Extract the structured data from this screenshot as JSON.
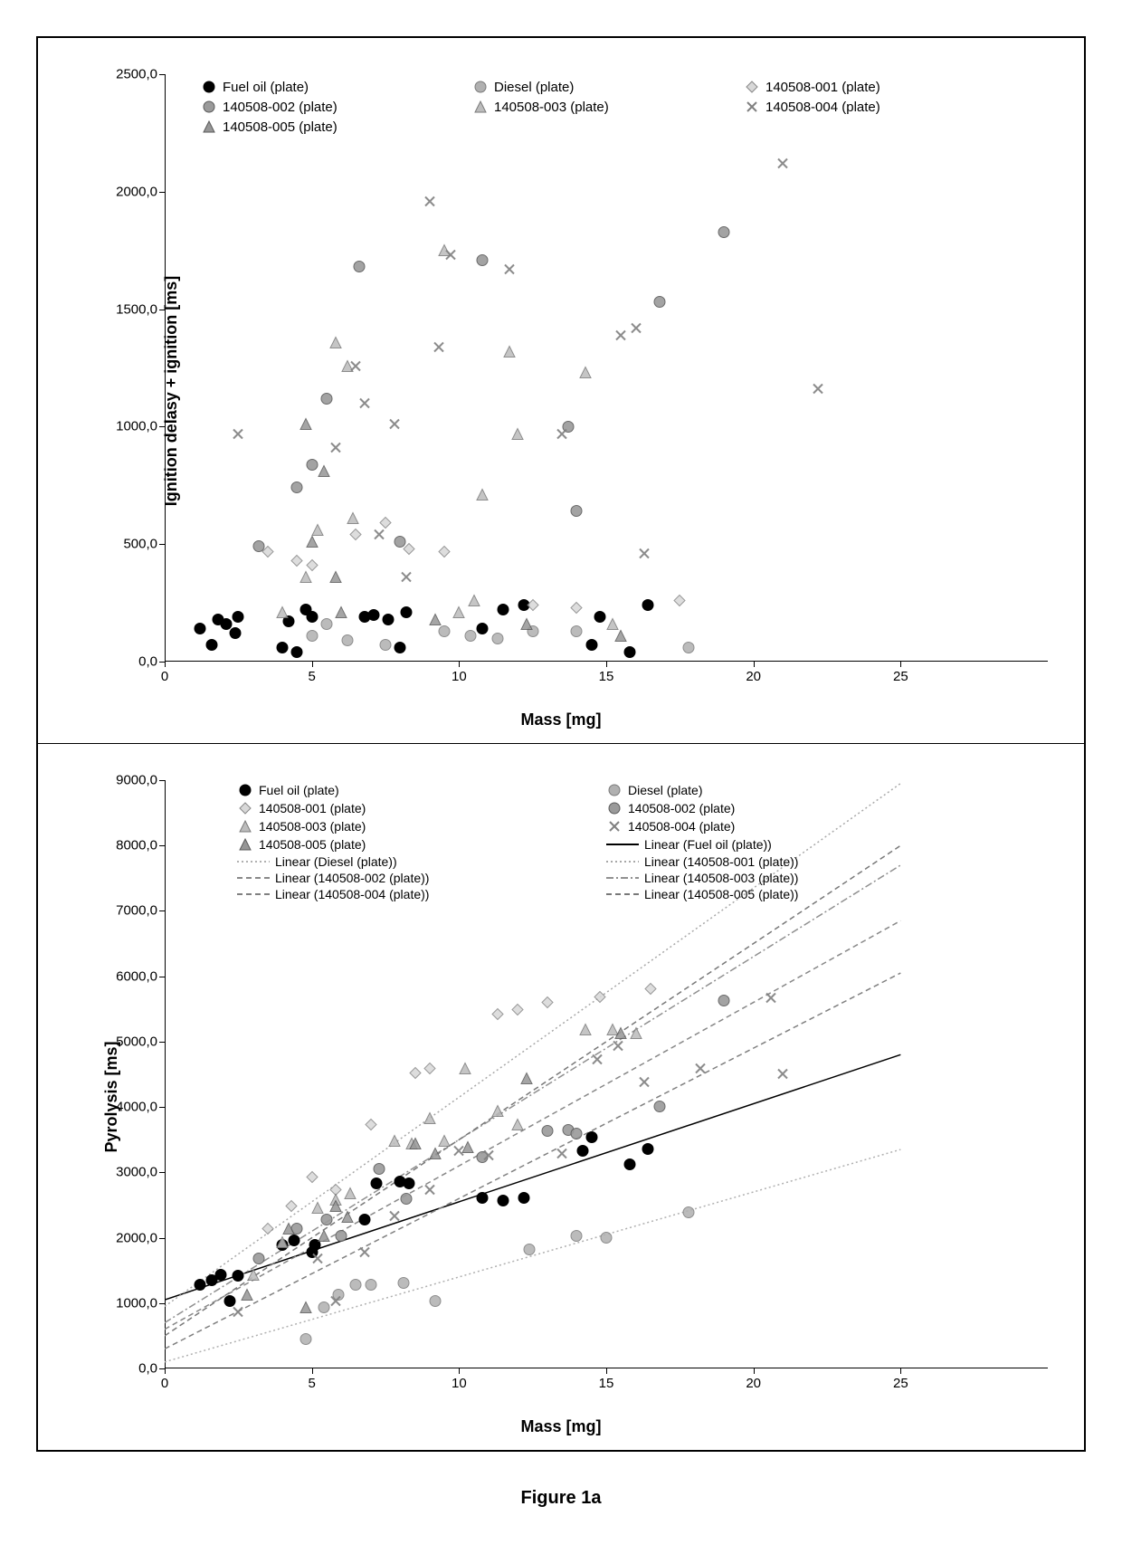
{
  "caption": "Figure 1a",
  "chart_a": {
    "type": "scatter",
    "ylabel": "Ignition delasy + ignition [ms]",
    "xlabel": "Mass [mg]",
    "label_fontsize": 18,
    "tick_fontsize": 15,
    "background_color": "#ffffff",
    "xlim": [
      0,
      30
    ],
    "ylim": [
      0,
      2500
    ],
    "xtick_step": 5,
    "ytick_step": 500,
    "xticks": [
      0,
      5,
      10,
      15,
      20,
      25
    ],
    "yticks": [
      "0,0",
      "500,0",
      "1000,0",
      "1500,0",
      "2000,0",
      "2500,0"
    ],
    "series": [
      {
        "id": "fuel_oil",
        "label": "Fuel oil (plate)",
        "marker": "circle",
        "fill": "#000000",
        "stroke": "#000000",
        "alpha": 1.0
      },
      {
        "id": "diesel",
        "label": "Diesel (plate)",
        "marker": "circle",
        "fill": "#b0b0b0",
        "stroke": "#7a7a7a",
        "alpha": 0.85
      },
      {
        "id": "s001",
        "label": "140508-001 (plate)",
        "marker": "diamond",
        "fill": "#d8d8d8",
        "stroke": "#888888",
        "alpha": 0.85
      },
      {
        "id": "s002",
        "label": "140508-002 (plate)",
        "marker": "circle",
        "fill": "#9a9a9a",
        "stroke": "#5a5a5a",
        "alpha": 0.9
      },
      {
        "id": "s003",
        "label": "140508-003 (plate)",
        "marker": "triangle",
        "fill": "#bcbcbc",
        "stroke": "#7a7a7a",
        "alpha": 0.85
      },
      {
        "id": "s004",
        "label": "140508-004 (plate)",
        "marker": "x",
        "fill": "none",
        "stroke": "#808080",
        "alpha": 0.9
      },
      {
        "id": "s005",
        "label": "140508-005 (plate)",
        "marker": "triangle",
        "fill": "#969696",
        "stroke": "#5a5a5a",
        "alpha": 0.85
      }
    ],
    "points": [
      {
        "s": "fuel_oil",
        "x": 1.2,
        "y": 130
      },
      {
        "s": "fuel_oil",
        "x": 1.6,
        "y": 60
      },
      {
        "s": "fuel_oil",
        "x": 1.8,
        "y": 170
      },
      {
        "s": "fuel_oil",
        "x": 2.1,
        "y": 150
      },
      {
        "s": "fuel_oil",
        "x": 2.4,
        "y": 110
      },
      {
        "s": "fuel_oil",
        "x": 2.5,
        "y": 180
      },
      {
        "s": "fuel_oil",
        "x": 4.0,
        "y": 50
      },
      {
        "s": "fuel_oil",
        "x": 4.2,
        "y": 160
      },
      {
        "s": "fuel_oil",
        "x": 4.5,
        "y": 30
      },
      {
        "s": "fuel_oil",
        "x": 4.8,
        "y": 210
      },
      {
        "s": "fuel_oil",
        "x": 5.0,
        "y": 180
      },
      {
        "s": "fuel_oil",
        "x": 6.8,
        "y": 180
      },
      {
        "s": "fuel_oil",
        "x": 7.1,
        "y": 190
      },
      {
        "s": "fuel_oil",
        "x": 7.6,
        "y": 170
      },
      {
        "s": "fuel_oil",
        "x": 8.0,
        "y": 50
      },
      {
        "s": "fuel_oil",
        "x": 8.2,
        "y": 200
      },
      {
        "s": "fuel_oil",
        "x": 10.8,
        "y": 130
      },
      {
        "s": "fuel_oil",
        "x": 11.5,
        "y": 210
      },
      {
        "s": "fuel_oil",
        "x": 12.2,
        "y": 230
      },
      {
        "s": "fuel_oil",
        "x": 14.5,
        "y": 60
      },
      {
        "s": "fuel_oil",
        "x": 14.8,
        "y": 180
      },
      {
        "s": "fuel_oil",
        "x": 15.8,
        "y": 30
      },
      {
        "s": "fuel_oil",
        "x": 16.4,
        "y": 230
      },
      {
        "s": "diesel",
        "x": 5.0,
        "y": 100
      },
      {
        "s": "diesel",
        "x": 5.5,
        "y": 150
      },
      {
        "s": "diesel",
        "x": 6.2,
        "y": 80
      },
      {
        "s": "diesel",
        "x": 7.5,
        "y": 60
      },
      {
        "s": "diesel",
        "x": 9.5,
        "y": 120
      },
      {
        "s": "diesel",
        "x": 10.4,
        "y": 100
      },
      {
        "s": "diesel",
        "x": 11.3,
        "y": 90
      },
      {
        "s": "diesel",
        "x": 12.5,
        "y": 120
      },
      {
        "s": "diesel",
        "x": 14.0,
        "y": 120
      },
      {
        "s": "diesel",
        "x": 17.8,
        "y": 50
      },
      {
        "s": "s001",
        "x": 3.5,
        "y": 460
      },
      {
        "s": "s001",
        "x": 4.5,
        "y": 420
      },
      {
        "s": "s001",
        "x": 5.0,
        "y": 400
      },
      {
        "s": "s001",
        "x": 6.5,
        "y": 530
      },
      {
        "s": "s001",
        "x": 7.5,
        "y": 580
      },
      {
        "s": "s001",
        "x": 8.3,
        "y": 470
      },
      {
        "s": "s001",
        "x": 9.5,
        "y": 460
      },
      {
        "s": "s001",
        "x": 12.5,
        "y": 230
      },
      {
        "s": "s001",
        "x": 14.0,
        "y": 220
      },
      {
        "s": "s001",
        "x": 17.5,
        "y": 250
      },
      {
        "s": "s002",
        "x": 3.2,
        "y": 480
      },
      {
        "s": "s002",
        "x": 4.5,
        "y": 730
      },
      {
        "s": "s002",
        "x": 5.0,
        "y": 830
      },
      {
        "s": "s002",
        "x": 5.5,
        "y": 1110
      },
      {
        "s": "s002",
        "x": 6.6,
        "y": 1670
      },
      {
        "s": "s002",
        "x": 8.0,
        "y": 500
      },
      {
        "s": "s002",
        "x": 10.8,
        "y": 1700
      },
      {
        "s": "s002",
        "x": 13.7,
        "y": 990
      },
      {
        "s": "s002",
        "x": 14.0,
        "y": 630
      },
      {
        "s": "s002",
        "x": 16.8,
        "y": 1520
      },
      {
        "s": "s002",
        "x": 19.0,
        "y": 1820
      },
      {
        "s": "s003",
        "x": 4.0,
        "y": 200
      },
      {
        "s": "s003",
        "x": 4.8,
        "y": 350
      },
      {
        "s": "s003",
        "x": 5.2,
        "y": 550
      },
      {
        "s": "s003",
        "x": 5.8,
        "y": 1350
      },
      {
        "s": "s003",
        "x": 6.2,
        "y": 1250
      },
      {
        "s": "s003",
        "x": 6.4,
        "y": 600
      },
      {
        "s": "s003",
        "x": 9.5,
        "y": 1740
      },
      {
        "s": "s003",
        "x": 10.0,
        "y": 200
      },
      {
        "s": "s003",
        "x": 10.5,
        "y": 250
      },
      {
        "s": "s003",
        "x": 10.8,
        "y": 700
      },
      {
        "s": "s003",
        "x": 11.7,
        "y": 1310
      },
      {
        "s": "s003",
        "x": 12.0,
        "y": 960
      },
      {
        "s": "s003",
        "x": 14.3,
        "y": 1220
      },
      {
        "s": "s003",
        "x": 15.2,
        "y": 150
      },
      {
        "s": "s004",
        "x": 2.5,
        "y": 960
      },
      {
        "s": "s004",
        "x": 5.8,
        "y": 900
      },
      {
        "s": "s004",
        "x": 6.5,
        "y": 1250
      },
      {
        "s": "s004",
        "x": 6.8,
        "y": 1090
      },
      {
        "s": "s004",
        "x": 7.3,
        "y": 530
      },
      {
        "s": "s004",
        "x": 7.8,
        "y": 1000
      },
      {
        "s": "s004",
        "x": 8.2,
        "y": 350
      },
      {
        "s": "s004",
        "x": 9.0,
        "y": 1950
      },
      {
        "s": "s004",
        "x": 9.3,
        "y": 1330
      },
      {
        "s": "s004",
        "x": 9.7,
        "y": 1720
      },
      {
        "s": "s004",
        "x": 11.7,
        "y": 1660
      },
      {
        "s": "s004",
        "x": 13.5,
        "y": 960
      },
      {
        "s": "s004",
        "x": 15.5,
        "y": 1380
      },
      {
        "s": "s004",
        "x": 16.0,
        "y": 1410
      },
      {
        "s": "s004",
        "x": 16.3,
        "y": 450
      },
      {
        "s": "s004",
        "x": 21.0,
        "y": 2110
      },
      {
        "s": "s004",
        "x": 22.2,
        "y": 1150
      },
      {
        "s": "s005",
        "x": 4.8,
        "y": 1000
      },
      {
        "s": "s005",
        "x": 5.0,
        "y": 500
      },
      {
        "s": "s005",
        "x": 5.4,
        "y": 800
      },
      {
        "s": "s005",
        "x": 5.8,
        "y": 350
      },
      {
        "s": "s005",
        "x": 6.0,
        "y": 200
      },
      {
        "s": "s005",
        "x": 9.2,
        "y": 170
      },
      {
        "s": "s005",
        "x": 12.3,
        "y": 150
      },
      {
        "s": "s005",
        "x": 15.5,
        "y": 100
      }
    ]
  },
  "chart_b": {
    "type": "scatter",
    "ylabel": "Pyrolysis [ms]",
    "xlabel": "Mass [mg]",
    "label_fontsize": 18,
    "tick_fontsize": 15,
    "background_color": "#ffffff",
    "xlim": [
      0,
      30
    ],
    "ylim": [
      0,
      9000
    ],
    "xtick_step": 5,
    "ytick_step": 1000,
    "xticks": [
      0,
      5,
      10,
      15,
      20,
      25
    ],
    "yticks": [
      "0,0",
      "1000,0",
      "2000,0",
      "3000,0",
      "4000,0",
      "5000,0",
      "6000,0",
      "7000,0",
      "8000,0",
      "9000,0"
    ],
    "series": [
      {
        "id": "fuel_oil",
        "label": "Fuel oil (plate)",
        "marker": "circle",
        "fill": "#000000",
        "stroke": "#000000",
        "alpha": 1.0,
        "line_label": "Linear (Fuel oil (plate))",
        "line_color": "#000000",
        "line_dash": "none",
        "trend": {
          "slope": 150,
          "intercept": 1050
        }
      },
      {
        "id": "diesel",
        "label": "Diesel (plate)",
        "marker": "circle",
        "fill": "#b0b0b0",
        "stroke": "#7a7a7a",
        "alpha": 0.85,
        "line_label": "Linear (Diesel (plate))",
        "line_color": "#b0b0b0",
        "line_dash": "dot",
        "trend": {
          "slope": 130,
          "intercept": 100
        }
      },
      {
        "id": "s001",
        "label": "140508-001 (plate)",
        "marker": "diamond",
        "fill": "#d8d8d8",
        "stroke": "#888888",
        "alpha": 0.85,
        "line_label": "Linear (140508-001 (plate))",
        "line_color": "#a8a8a8",
        "line_dash": "dot",
        "trend": {
          "slope": 320,
          "intercept": 950
        }
      },
      {
        "id": "s002",
        "label": "140508-002 (plate)",
        "marker": "circle",
        "fill": "#9a9a9a",
        "stroke": "#5a5a5a",
        "alpha": 0.9,
        "line_label": "Linear (140508-002 (plate))",
        "line_color": "#888888",
        "line_dash": "dash",
        "trend": {
          "slope": 250,
          "intercept": 600
        }
      },
      {
        "id": "s003",
        "label": "140508-003 (plate)",
        "marker": "triangle",
        "fill": "#bcbcbc",
        "stroke": "#7a7a7a",
        "alpha": 0.85,
        "line_label": "Linear (140508-003 (plate))",
        "line_color": "#909090",
        "line_dash": "dashdot",
        "trend": {
          "slope": 280,
          "intercept": 700
        }
      },
      {
        "id": "s004",
        "label": "140508-004 (plate)",
        "marker": "x",
        "fill": "none",
        "stroke": "#808080",
        "alpha": 0.9,
        "line_label": "Linear (140508-004 (plate))",
        "line_color": "#808080",
        "line_dash": "dash",
        "trend": {
          "slope": 230,
          "intercept": 300
        }
      },
      {
        "id": "s005",
        "label": "140508-005 (plate)",
        "marker": "triangle",
        "fill": "#969696",
        "stroke": "#5a5a5a",
        "alpha": 0.85,
        "line_label": "Linear (140508-005 (plate))",
        "line_color": "#787878",
        "line_dash": "dash",
        "trend": {
          "slope": 300,
          "intercept": 500
        }
      }
    ],
    "points": [
      {
        "s": "fuel_oil",
        "x": 1.2,
        "y": 1250
      },
      {
        "s": "fuel_oil",
        "x": 1.6,
        "y": 1320
      },
      {
        "s": "fuel_oil",
        "x": 1.9,
        "y": 1400
      },
      {
        "s": "fuel_oil",
        "x": 2.2,
        "y": 1000
      },
      {
        "s": "fuel_oil",
        "x": 2.5,
        "y": 1380
      },
      {
        "s": "fuel_oil",
        "x": 4.0,
        "y": 1850
      },
      {
        "s": "fuel_oil",
        "x": 4.4,
        "y": 1920
      },
      {
        "s": "fuel_oil",
        "x": 5.0,
        "y": 1750
      },
      {
        "s": "fuel_oil",
        "x": 5.1,
        "y": 1850
      },
      {
        "s": "fuel_oil",
        "x": 6.8,
        "y": 2250
      },
      {
        "s": "fuel_oil",
        "x": 7.2,
        "y": 2800
      },
      {
        "s": "fuel_oil",
        "x": 8.0,
        "y": 2820
      },
      {
        "s": "fuel_oil",
        "x": 8.3,
        "y": 2800
      },
      {
        "s": "fuel_oil",
        "x": 10.8,
        "y": 2580
      },
      {
        "s": "fuel_oil",
        "x": 11.5,
        "y": 2540
      },
      {
        "s": "fuel_oil",
        "x": 12.2,
        "y": 2580
      },
      {
        "s": "fuel_oil",
        "x": 14.2,
        "y": 3300
      },
      {
        "s": "fuel_oil",
        "x": 14.5,
        "y": 3500
      },
      {
        "s": "fuel_oil",
        "x": 15.8,
        "y": 3090
      },
      {
        "s": "fuel_oil",
        "x": 16.4,
        "y": 3330
      },
      {
        "s": "diesel",
        "x": 4.8,
        "y": 420
      },
      {
        "s": "diesel",
        "x": 5.4,
        "y": 900
      },
      {
        "s": "diesel",
        "x": 5.9,
        "y": 1100
      },
      {
        "s": "diesel",
        "x": 6.5,
        "y": 1250
      },
      {
        "s": "diesel",
        "x": 7.0,
        "y": 1250
      },
      {
        "s": "diesel",
        "x": 8.1,
        "y": 1270
      },
      {
        "s": "diesel",
        "x": 9.2,
        "y": 1000
      },
      {
        "s": "diesel",
        "x": 12.4,
        "y": 1780
      },
      {
        "s": "diesel",
        "x": 14.0,
        "y": 2000
      },
      {
        "s": "diesel",
        "x": 15.0,
        "y": 1960
      },
      {
        "s": "diesel",
        "x": 17.8,
        "y": 2350
      },
      {
        "s": "s001",
        "x": 3.5,
        "y": 2100
      },
      {
        "s": "s001",
        "x": 4.3,
        "y": 2450
      },
      {
        "s": "s001",
        "x": 5.0,
        "y": 2900
      },
      {
        "s": "s001",
        "x": 5.8,
        "y": 2700
      },
      {
        "s": "s001",
        "x": 7.0,
        "y": 3700
      },
      {
        "s": "s001",
        "x": 8.5,
        "y": 4480
      },
      {
        "s": "s001",
        "x": 9.0,
        "y": 4560
      },
      {
        "s": "s001",
        "x": 11.3,
        "y": 5380
      },
      {
        "s": "s001",
        "x": 12.0,
        "y": 5450
      },
      {
        "s": "s001",
        "x": 13.0,
        "y": 5560
      },
      {
        "s": "s001",
        "x": 14.8,
        "y": 5650
      },
      {
        "s": "s001",
        "x": 16.5,
        "y": 5770
      },
      {
        "s": "s002",
        "x": 3.2,
        "y": 1650
      },
      {
        "s": "s002",
        "x": 4.5,
        "y": 2100
      },
      {
        "s": "s002",
        "x": 5.5,
        "y": 2250
      },
      {
        "s": "s002",
        "x": 6.0,
        "y": 2000
      },
      {
        "s": "s002",
        "x": 7.3,
        "y": 3020
      },
      {
        "s": "s002",
        "x": 8.2,
        "y": 2560
      },
      {
        "s": "s002",
        "x": 10.8,
        "y": 3200
      },
      {
        "s": "s002",
        "x": 13.0,
        "y": 3600
      },
      {
        "s": "s002",
        "x": 13.7,
        "y": 3620
      },
      {
        "s": "s002",
        "x": 14.0,
        "y": 3560
      },
      {
        "s": "s002",
        "x": 16.8,
        "y": 3970
      },
      {
        "s": "s002",
        "x": 19.0,
        "y": 5600
      },
      {
        "s": "s003",
        "x": 3.0,
        "y": 1400
      },
      {
        "s": "s003",
        "x": 4.0,
        "y": 1900
      },
      {
        "s": "s003",
        "x": 5.2,
        "y": 2420
      },
      {
        "s": "s003",
        "x": 5.8,
        "y": 2550
      },
      {
        "s": "s003",
        "x": 6.3,
        "y": 2650
      },
      {
        "s": "s003",
        "x": 7.8,
        "y": 3450
      },
      {
        "s": "s003",
        "x": 8.4,
        "y": 3400
      },
      {
        "s": "s003",
        "x": 9.0,
        "y": 3800
      },
      {
        "s": "s003",
        "x": 9.5,
        "y": 3450
      },
      {
        "s": "s003",
        "x": 10.2,
        "y": 4550
      },
      {
        "s": "s003",
        "x": 11.3,
        "y": 3900
      },
      {
        "s": "s003",
        "x": 12.0,
        "y": 3700
      },
      {
        "s": "s003",
        "x": 14.3,
        "y": 5150
      },
      {
        "s": "s003",
        "x": 15.2,
        "y": 5150
      },
      {
        "s": "s003",
        "x": 16.0,
        "y": 5100
      },
      {
        "s": "s004",
        "x": 2.5,
        "y": 830
      },
      {
        "s": "s004",
        "x": 5.2,
        "y": 1650
      },
      {
        "s": "s004",
        "x": 5.8,
        "y": 1000
      },
      {
        "s": "s004",
        "x": 6.8,
        "y": 1750
      },
      {
        "s": "s004",
        "x": 7.8,
        "y": 2300
      },
      {
        "s": "s004",
        "x": 9.0,
        "y": 2700
      },
      {
        "s": "s004",
        "x": 10.0,
        "y": 3300
      },
      {
        "s": "s004",
        "x": 11.0,
        "y": 3220
      },
      {
        "s": "s004",
        "x": 13.5,
        "y": 3250
      },
      {
        "s": "s004",
        "x": 14.7,
        "y": 4700
      },
      {
        "s": "s004",
        "x": 15.4,
        "y": 4900
      },
      {
        "s": "s004",
        "x": 16.3,
        "y": 4350
      },
      {
        "s": "s004",
        "x": 18.2,
        "y": 4550
      },
      {
        "s": "s004",
        "x": 20.6,
        "y": 5640
      },
      {
        "s": "s004",
        "x": 21.0,
        "y": 4470
      },
      {
        "s": "s005",
        "x": 2.8,
        "y": 1100
      },
      {
        "s": "s005",
        "x": 4.2,
        "y": 2100
      },
      {
        "s": "s005",
        "x": 4.8,
        "y": 900
      },
      {
        "s": "s005",
        "x": 5.4,
        "y": 2000
      },
      {
        "s": "s005",
        "x": 5.8,
        "y": 2450
      },
      {
        "s": "s005",
        "x": 6.2,
        "y": 2280
      },
      {
        "s": "s005",
        "x": 8.5,
        "y": 3400
      },
      {
        "s": "s005",
        "x": 9.2,
        "y": 3250
      },
      {
        "s": "s005",
        "x": 10.3,
        "y": 3350
      },
      {
        "s": "s005",
        "x": 12.3,
        "y": 4400
      },
      {
        "s": "s005",
        "x": 15.5,
        "y": 5100
      }
    ]
  }
}
